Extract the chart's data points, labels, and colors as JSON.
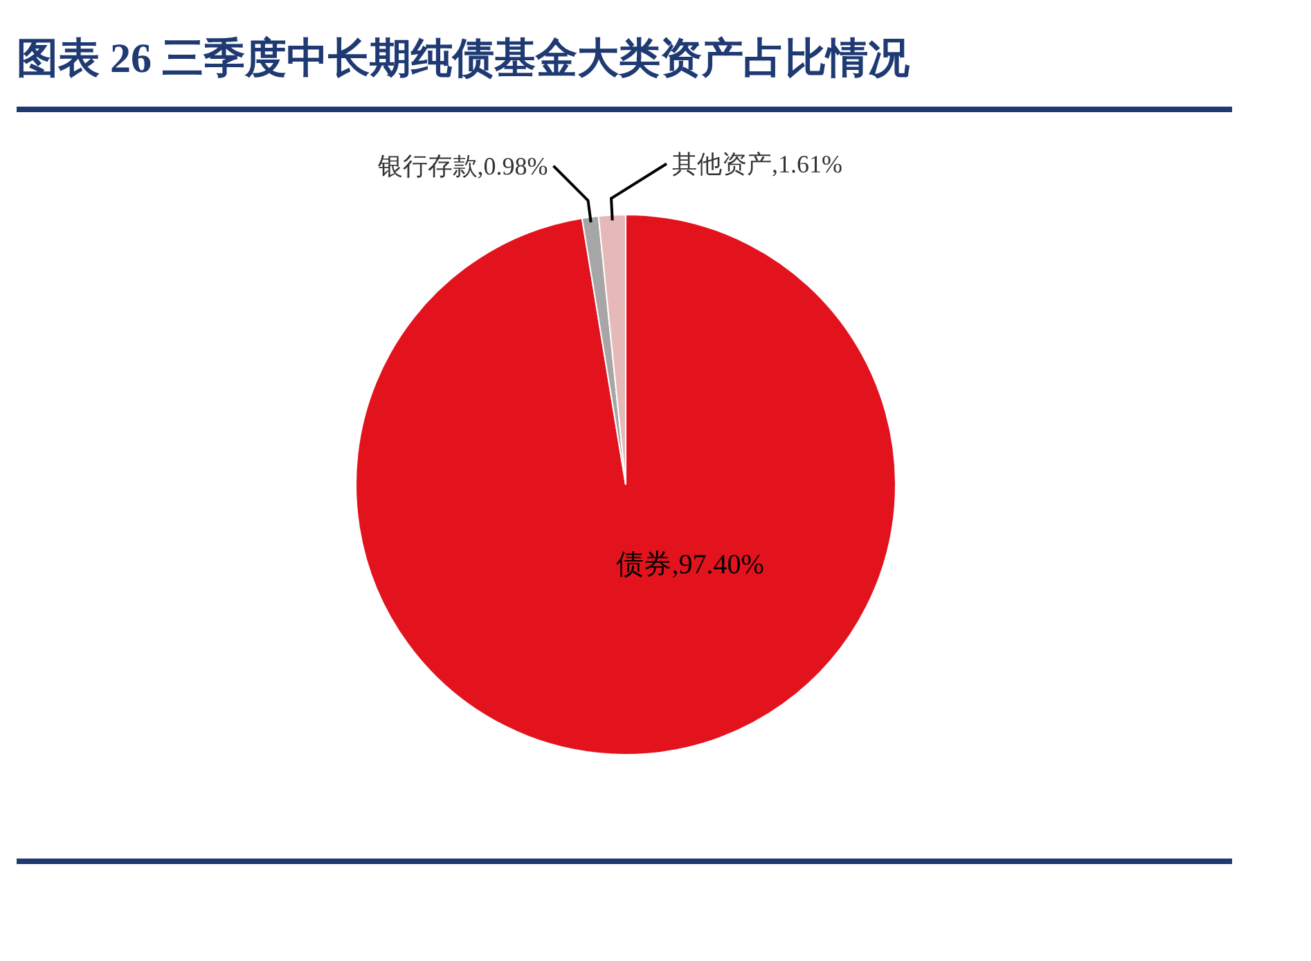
{
  "chart_data": {
    "type": "pie",
    "title": "图表 26  三季度中长期纯债基金大类资产占比情况",
    "categories": [
      "债券",
      "银行存款",
      "其他资产"
    ],
    "values": [
      97.4,
      0.98,
      1.61
    ],
    "colors": [
      "#e3131e",
      "#a6a6a6",
      "#e6b9b8"
    ],
    "value_labels": [
      "97.40%",
      "0.98%",
      "1.61%"
    ]
  }
}
